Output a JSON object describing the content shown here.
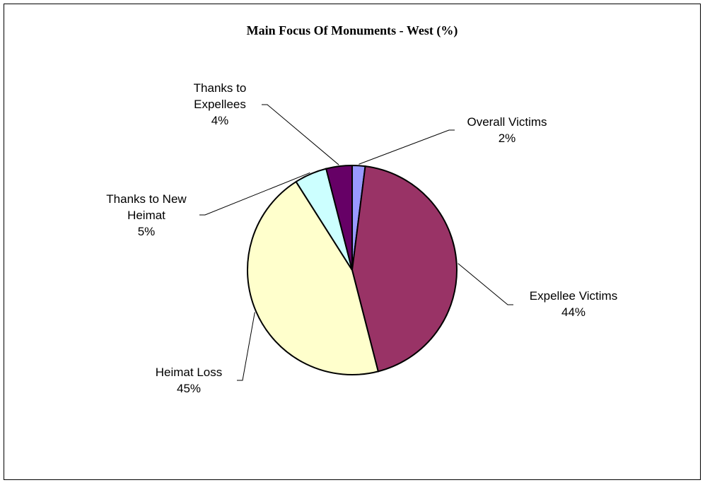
{
  "chart_data": {
    "type": "pie",
    "title": "Main Focus Of Monuments - West (%)",
    "categories": [
      "Overall Victims",
      "Expellee Victims",
      "Heimat Loss",
      "Thanks to New Heimat",
      "Thanks to Expellees"
    ],
    "values": [
      2,
      44,
      45,
      5,
      4
    ],
    "value_labels": [
      "2%",
      "44%",
      "45%",
      "5%",
      "4%"
    ],
    "colors": [
      "#9999ff",
      "#993366",
      "#ffffcc",
      "#ccffff",
      "#660066"
    ]
  }
}
